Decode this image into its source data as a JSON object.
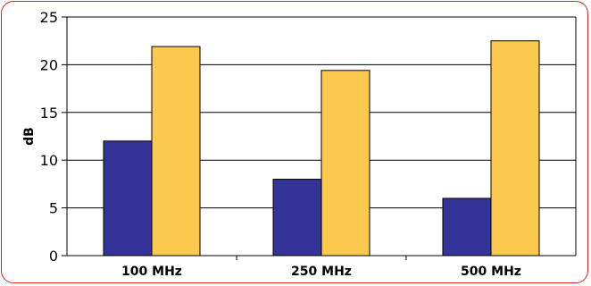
{
  "chart_data": {
    "type": "bar",
    "title": "",
    "xlabel": "",
    "ylabel": "dB",
    "ylim": [
      0,
      25
    ],
    "yticks": [
      0,
      5,
      10,
      15,
      20,
      25
    ],
    "grid": true,
    "categories": [
      "100 MHz",
      "250 MHz",
      "500 MHz"
    ],
    "series": [
      {
        "values": [
          12,
          8,
          6
        ],
        "color": "#333399"
      },
      {
        "values": [
          21.9,
          19.4,
          22.5
        ],
        "color": "#fbc94d"
      }
    ],
    "frame_color": "#d9262b"
  }
}
